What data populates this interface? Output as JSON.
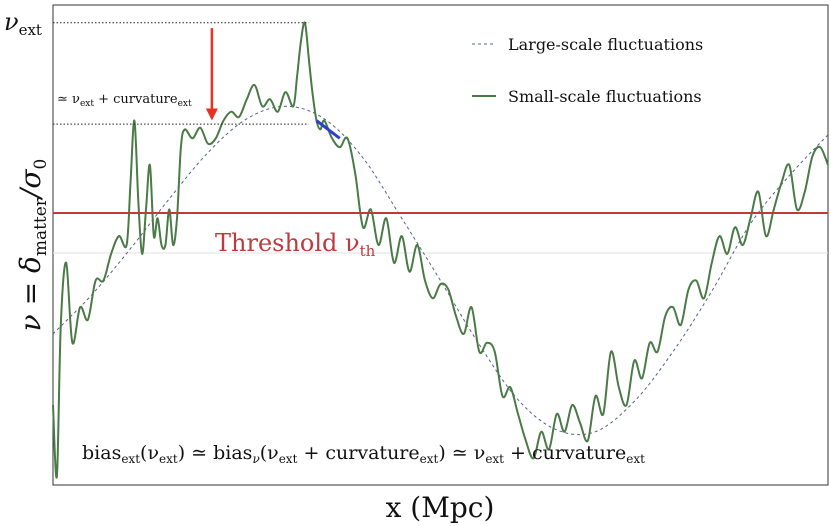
{
  "chart_data": {
    "type": "line",
    "title": "",
    "xlabel": "x (Mpc)",
    "ylabel_parts": {
      "main": "ν = δ",
      "sub": "matter",
      "tail": "/σ",
      "tail_sub": "0"
    },
    "x_ticks": "none",
    "y_ticks": "none",
    "grid": false,
    "legend_position": "top-right",
    "xlim": [
      0,
      1
    ],
    "ylim": [
      -1.35,
      1.35
    ],
    "series": [
      {
        "name": "Large-scale fluctuations",
        "style": "dashed",
        "color": "#55608f",
        "x": [
          0.0,
          0.05,
          0.1,
          0.15,
          0.2,
          0.25,
          0.3,
          0.35,
          0.4,
          0.45,
          0.5,
          0.55,
          0.6,
          0.65,
          0.7,
          0.75,
          0.8,
          0.85,
          0.9,
          0.95,
          1.0
        ],
        "y": [
          -0.5,
          -0.28,
          -0.02,
          0.26,
          0.52,
          0.71,
          0.78,
          0.71,
          0.49,
          0.15,
          -0.2,
          -0.56,
          -0.87,
          -1.04,
          -1.05,
          -0.88,
          -0.6,
          -0.26,
          0.12,
          0.39,
          0.62
        ]
      },
      {
        "name": "Small-scale fluctuations",
        "style": "solid",
        "color": "#4a7a45",
        "x": [
          0.0,
          0.005,
          0.01,
          0.017,
          0.025,
          0.035,
          0.045,
          0.055,
          0.065,
          0.075,
          0.085,
          0.095,
          0.1,
          0.105,
          0.11,
          0.115,
          0.12,
          0.125,
          0.13,
          0.135,
          0.14,
          0.145,
          0.15,
          0.155,
          0.16,
          0.165,
          0.17,
          0.18,
          0.19,
          0.2,
          0.21,
          0.22,
          0.23,
          0.24,
          0.25,
          0.26,
          0.27,
          0.28,
          0.29,
          0.3,
          0.31,
          0.315,
          0.32,
          0.325,
          0.33,
          0.335,
          0.34,
          0.345,
          0.35,
          0.36,
          0.37,
          0.38,
          0.39,
          0.4,
          0.41,
          0.42,
          0.43,
          0.44,
          0.45,
          0.46,
          0.47,
          0.48,
          0.49,
          0.5,
          0.51,
          0.52,
          0.53,
          0.54,
          0.55,
          0.56,
          0.57,
          0.58,
          0.59,
          0.6,
          0.61,
          0.62,
          0.63,
          0.64,
          0.65,
          0.66,
          0.67,
          0.68,
          0.69,
          0.7,
          0.71,
          0.72,
          0.73,
          0.74,
          0.75,
          0.76,
          0.77,
          0.78,
          0.79,
          0.8,
          0.81,
          0.82,
          0.83,
          0.84,
          0.85,
          0.86,
          0.87,
          0.88,
          0.89,
          0.9,
          0.91,
          0.92,
          0.93,
          0.94,
          0.95,
          0.96,
          0.97,
          0.98,
          0.99,
          1.0
        ],
        "y": [
          -0.9,
          -1.3,
          -0.45,
          -0.1,
          -0.55,
          -0.35,
          -0.42,
          -0.2,
          -0.2,
          -0.05,
          0.05,
          0.0,
          0.35,
          0.7,
          0.25,
          -0.05,
          0.2,
          0.45,
          0.05,
          0.15,
          0.0,
          0.0,
          0.2,
          0.0,
          0.15,
          0.55,
          0.65,
          0.6,
          0.66,
          0.57,
          0.6,
          0.7,
          0.75,
          0.72,
          0.82,
          0.9,
          0.78,
          0.82,
          0.75,
          0.86,
          0.78,
          0.95,
          1.15,
          1.25,
          1.05,
          0.85,
          0.7,
          0.65,
          0.7,
          0.6,
          0.55,
          0.6,
          0.4,
          0.1,
          0.2,
          0.0,
          0.15,
          -0.1,
          0.05,
          -0.15,
          0.0,
          -0.2,
          -0.3,
          -0.22,
          -0.25,
          -0.4,
          -0.5,
          -0.35,
          -0.6,
          -0.55,
          -0.6,
          -0.85,
          -0.8,
          -0.95,
          -1.1,
          -1.2,
          -1.05,
          -1.15,
          -0.95,
          -1.05,
          -0.9,
          -1.0,
          -1.1,
          -0.85,
          -0.95,
          -0.6,
          -0.8,
          -0.9,
          -0.65,
          -0.75,
          -0.55,
          -0.6,
          -0.4,
          -0.35,
          -0.45,
          -0.25,
          -0.2,
          -0.3,
          -0.1,
          0.05,
          -0.05,
          0.1,
          0.0,
          0.15,
          0.3,
          0.05,
          0.2,
          0.35,
          0.45,
          0.2,
          0.3,
          0.5,
          0.55,
          0.45
        ]
      },
      {
        "name": "",
        "style": "solid",
        "color": "#2d3fd0",
        "x": [
          0.34,
          0.37
        ],
        "y": [
          0.7,
          0.6
        ]
      }
    ],
    "threshold": {
      "label_main": "Threshold ν",
      "label_sub": "th",
      "y": 0.18,
      "color": "#c0393b"
    },
    "nu_ext": {
      "label_main": "ν",
      "label_sub": "ext",
      "y": 1.25,
      "x": 0.33
    },
    "curvature_level": {
      "label_pre": "≃ ν",
      "label_sub1": "ext",
      "label_mid": " + curvature",
      "label_sub2": "ext",
      "y": 0.68
    },
    "arrow": {
      "x": 0.205,
      "y_from": 1.22,
      "y_to": 0.7,
      "color": "#e8321f"
    },
    "formula": {
      "p1": "bias",
      "s1": "ext",
      "p2": "(ν",
      "s2": "ext",
      "p3": ") ≃ bias",
      "s3": "ν",
      "p4": "(ν",
      "s4": "ext",
      "p5": " + curvature",
      "s5": "ext",
      "p6": ") ≃ ν",
      "s6": "ext",
      "p7": " + curvature",
      "s7": "ext"
    }
  }
}
